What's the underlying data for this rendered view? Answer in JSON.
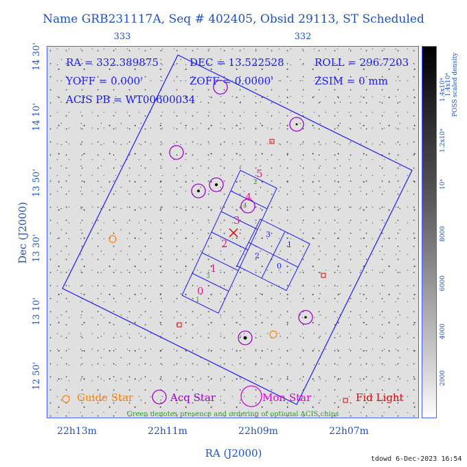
{
  "title": "Name GRB231117A, Seq # 402405, Obsid 29113, ST Scheduled",
  "top_ticks": [
    "333",
    "332"
  ],
  "bottom_ticks": [
    "22h13m",
    "22h11m",
    "22h09m",
    "22h07m"
  ],
  "left_ticks": [
    "14 30'",
    "14 10'",
    "13 50'",
    "13 30'",
    "13 10'",
    "12 50'"
  ],
  "x_axis_label": "RA (J2000)",
  "y_axis_label": "Dec (J2000)",
  "info": {
    "ra": "RA = 332.389875",
    "dec": "DEC = 13.522528",
    "roll": "ROLL = 296.7203",
    "yoff": "YOFF = 0.000'",
    "zoff": "ZOFF = 0.0000'",
    "zsim": "ZSIM = 0 mm",
    "acis_pb": "ACIS PB = WT00600034"
  },
  "chips_main": [
    "0",
    "1",
    "2",
    "3",
    "4",
    "5"
  ],
  "chips_optional": [
    "1",
    "3",
    "4",
    "2"
  ],
  "chips_i": [
    "3",
    "1",
    "2",
    "0"
  ],
  "colorbar": {
    "ticks": [
      "2000",
      "4000",
      "6000",
      "8000",
      "10⁴",
      "1.2x10⁴",
      "1.4x10⁴"
    ],
    "label_line1": "1.4x10⁴",
    "label_line2": "POSS scaled density"
  },
  "legend": {
    "guide": "Guide Star",
    "acq": "Acq Star",
    "mon": "Mon Star",
    "fid": "Fid Light"
  },
  "footnote": "Green denotes presence and ordering of optional ACIS chips",
  "timestamp": "tdowd  6-Dec-2023 16:54",
  "colors": {
    "axis_blue": "#1e50c8",
    "fov_blue": "#1a1aff",
    "guide_orange": "#ff8000",
    "acq_purple": "#9a00d0",
    "mon_magenta": "#e000e0",
    "fid_red": "#e00000",
    "optional_green": "#2a9a2a",
    "chip_label_magenta": "#e0208a"
  }
}
